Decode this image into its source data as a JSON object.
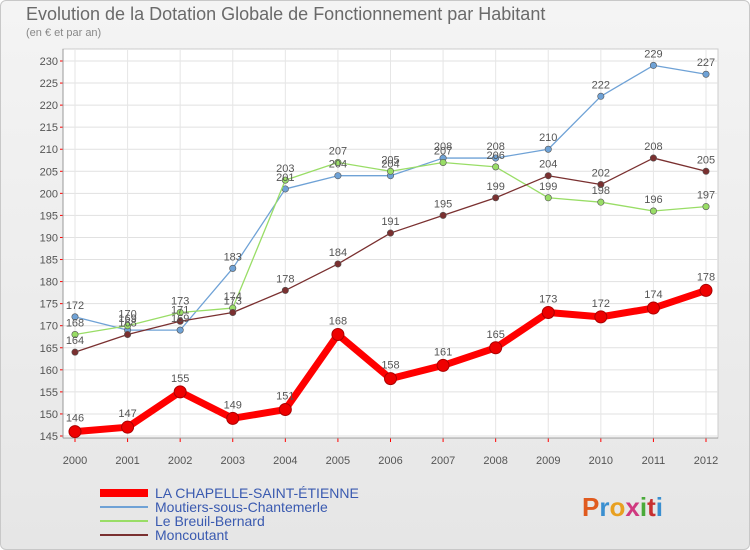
{
  "chart_data": {
    "type": "line",
    "title": "Evolution de la Dotation Globale de Fonctionnement par Habitant",
    "subtitle": "(en € et par an)",
    "xlabel": "",
    "ylabel": "",
    "categories": [
      "2000",
      "2001",
      "2002",
      "2003",
      "2004",
      "2005",
      "2006",
      "2007",
      "2008",
      "2009",
      "2010",
      "2011",
      "2012"
    ],
    "ylim": [
      145,
      230
    ],
    "yticks": [
      145,
      150,
      155,
      160,
      165,
      170,
      175,
      180,
      185,
      190,
      195,
      200,
      205,
      210,
      215,
      220,
      225,
      230
    ],
    "grid": true,
    "legend_position": "bottom-left",
    "series": [
      {
        "name": "LA CHAPELLE-SAINT-ÉTIENNE",
        "color": "#ff0000",
        "values": [
          146,
          147,
          155,
          149,
          151,
          168,
          158,
          161,
          165,
          173,
          172,
          174,
          178
        ]
      },
      {
        "name": "Moutiers-sous-Chantemerle",
        "color": "#6fa2d6",
        "values": [
          172,
          169,
          169,
          183,
          201,
          204,
          204,
          208,
          208,
          210,
          222,
          229,
          227
        ]
      },
      {
        "name": "Le Breuil-Bernard",
        "color": "#99dd66",
        "values": [
          168,
          170,
          173,
          174,
          203,
          207,
          205,
          207,
          206,
          199,
          198,
          196,
          197
        ]
      },
      {
        "name": "Moncoutant",
        "color": "#7a3030",
        "values": [
          164,
          168,
          171,
          173,
          178,
          184,
          191,
          195,
          199,
          204,
          202,
          208,
          205
        ]
      }
    ]
  },
  "watermark": {
    "text": "Proxiti"
  }
}
